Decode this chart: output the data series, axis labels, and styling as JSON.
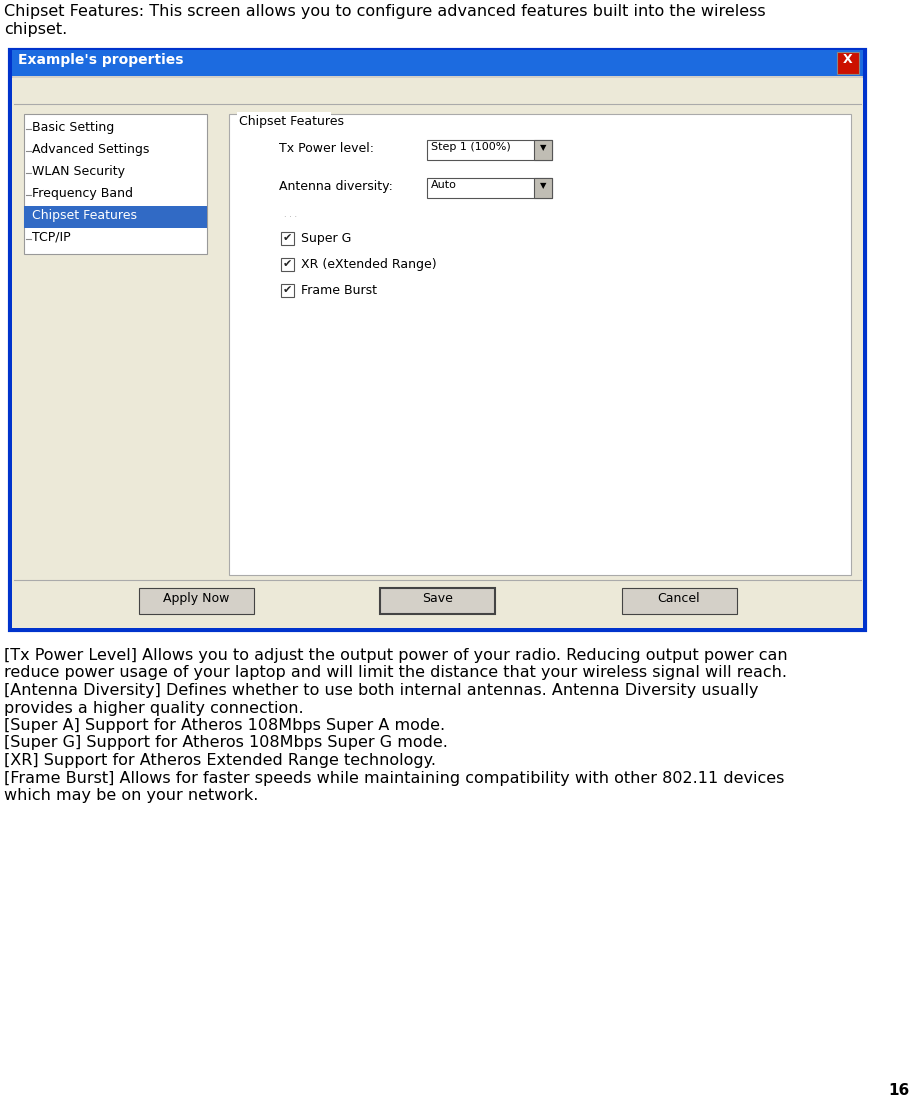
{
  "page_width": 9.16,
  "page_height": 11.01,
  "bg_color": "#ffffff",
  "header_text_line1": "Chipset Features: This screen allows you to configure advanced features built into the wireless",
  "header_text_line2": "chipset.",
  "dialog_title": "Example's properties",
  "dialog_titlebar_color": "#1c6be0",
  "dialog_titlebar_text_color": "#ffffff",
  "dialog_bg": "#d4d0c8",
  "dialog_inner_bg": "#ece9d8",
  "nav_items": [
    "Basic Setting",
    "Advanced Settings",
    "WLAN Security",
    "Frequency Band",
    "Chipset Features",
    "TCP/IP"
  ],
  "nav_selected": "Chipset Features",
  "nav_selected_bg": "#316ac5",
  "nav_selected_fg": "#ffffff",
  "nav_fg": "#000000",
  "panel_title": "Chipset Features",
  "tx_label": "Tx Power level:",
  "tx_value": "Step 1 (100%)",
  "ant_label": "Antenna diversity:",
  "ant_value": "Auto",
  "checkboxes": [
    "Super G",
    "XR (eXtended Range)",
    "Frame Burst"
  ],
  "buttons": [
    "Apply Now",
    "Save",
    "Cancel"
  ],
  "body_lines": [
    "[Tx Power Level] Allows you to adjust the output power of your radio. Reducing output power can",
    "reduce power usage of your laptop and will limit the distance that your wireless signal will reach.",
    "[Antenna Diversity] Defines whether to use both internal antennas. Antenna Diversity usually",
    "provides a higher quality connection.",
    "[Super A] Support for Atheros 108Mbps Super A mode.",
    "[Super G] Support for Atheros 108Mbps Super G mode.",
    "[XR] Support for Atheros Extended Range technology.",
    "[Frame Burst] Allows for faster speeds while maintaining compatibility with other 802.11 devices",
    "which may be on your network."
  ],
  "page_number": "16",
  "font_size_header": 11.5,
  "font_size_body": 11.5,
  "font_size_dialog_title": 10,
  "font_size_dialog": 9,
  "font_size_page_num": 11
}
